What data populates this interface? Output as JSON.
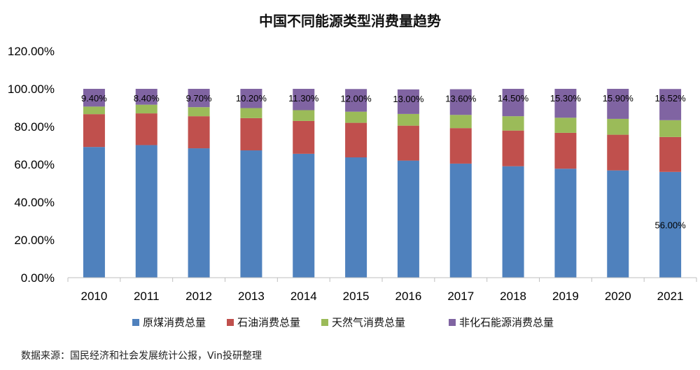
{
  "chart_data": {
    "type": "bar",
    "stacked": true,
    "title": "中国不同能源类型消费量趋势",
    "categories": [
      "2010",
      "2011",
      "2012",
      "2013",
      "2014",
      "2015",
      "2016",
      "2017",
      "2018",
      "2019",
      "2020",
      "2021"
    ],
    "series": [
      {
        "name": "原煤消费总量",
        "color": "#4f81bd",
        "values": [
          69.2,
          70.2,
          68.5,
          67.4,
          65.6,
          63.7,
          62.0,
          60.4,
          59.0,
          57.7,
          56.8,
          56.0
        ]
      },
      {
        "name": "石油消费总量",
        "color": "#c0504d",
        "values": [
          17.4,
          16.8,
          17.0,
          17.1,
          17.4,
          18.3,
          18.5,
          18.8,
          18.9,
          19.0,
          18.9,
          18.5
        ]
      },
      {
        "name": "天然气消费总量",
        "color": "#9bbb59",
        "values": [
          4.0,
          4.6,
          4.8,
          5.3,
          5.7,
          5.9,
          6.2,
          7.0,
          7.6,
          8.0,
          8.4,
          8.9
        ]
      },
      {
        "name": "非化石能源消费总量",
        "color": "#8064a2",
        "values": [
          9.4,
          8.4,
          9.7,
          10.2,
          11.3,
          12.0,
          13.0,
          13.6,
          14.5,
          15.3,
          15.9,
          16.52
        ]
      }
    ],
    "data_labels": [
      "9.40%",
      "8.40%",
      "9.70%",
      "10.20%",
      "11.30%",
      "12.00%",
      "13.00%",
      "13.60%",
      "14.50%",
      "15.30%",
      "15.90%",
      "16.52%"
    ],
    "extra_label": {
      "category": "2021",
      "series": "原煤消费总量",
      "text": "56.00%"
    },
    "y_ticks": [
      "0.00%",
      "20.00%",
      "40.00%",
      "60.00%",
      "80.00%",
      "100.00%",
      "120.00%"
    ],
    "ylim": [
      0,
      120
    ],
    "legend_position": "bottom",
    "grid": false
  },
  "source_note": "数据来源：国民经济和社会发展统计公报，Vin投研整理"
}
